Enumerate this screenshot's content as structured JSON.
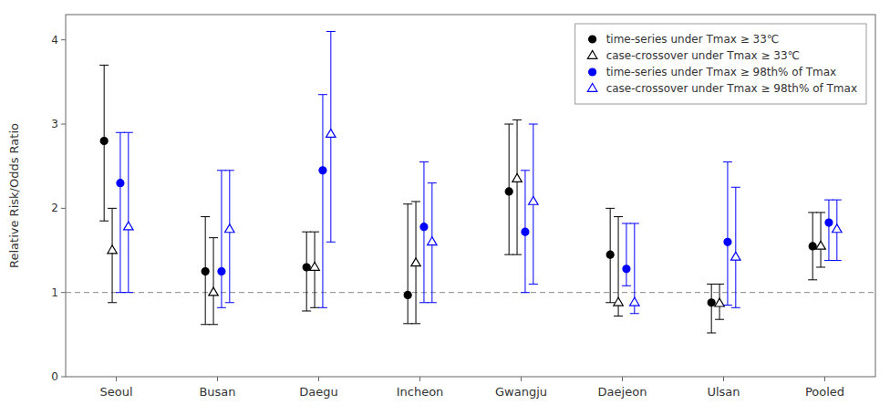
{
  "chart_data": {
    "type": "errorbar",
    "categories": [
      "Seoul",
      "Busan",
      "Daegu",
      "Incheon",
      "Gwangju",
      "Daejeon",
      "Ulsan",
      "Pooled"
    ],
    "y_label": "Relative Risk/Odds Ratio",
    "ylim": [
      0,
      4.3
    ],
    "yticks": [
      0,
      1,
      2,
      3,
      4
    ],
    "reference_line": 1.0,
    "grid": false,
    "legend": "upper right",
    "series": [
      {
        "name": "time-series under Tmax ≥ 33℃",
        "color": "#000000",
        "marker": "filled-circle",
        "values": [
          2.8,
          1.25,
          1.3,
          0.97,
          2.2,
          1.45,
          0.88,
          1.55
        ],
        "ci_low": [
          1.85,
          0.62,
          0.78,
          0.63,
          1.45,
          0.88,
          0.52,
          1.15
        ],
        "ci_high": [
          3.7,
          1.9,
          1.72,
          2.05,
          3.0,
          2.0,
          1.1,
          1.95
        ]
      },
      {
        "name": "case-crossover under Tmax ≥ 33℃",
        "color": "#000000",
        "marker": "open-triangle",
        "values": [
          1.5,
          1.0,
          1.3,
          1.35,
          2.35,
          0.88,
          0.87,
          1.55
        ],
        "ci_low": [
          0.88,
          0.62,
          0.82,
          0.63,
          1.45,
          0.72,
          0.68,
          1.3
        ],
        "ci_high": [
          2.0,
          1.65,
          1.72,
          2.08,
          3.05,
          1.9,
          1.1,
          1.95
        ]
      },
      {
        "name": "time-series under Tmax ≥ 98th% of Tmax",
        "color": "#0000ff",
        "marker": "filled-circle",
        "values": [
          2.3,
          1.25,
          2.45,
          1.78,
          1.72,
          1.28,
          1.6,
          1.83
        ],
        "ci_low": [
          1.0,
          0.82,
          0.82,
          0.88,
          1.0,
          1.08,
          0.85,
          1.38
        ],
        "ci_high": [
          2.9,
          2.45,
          3.35,
          2.55,
          2.45,
          1.82,
          2.55,
          2.1
        ]
      },
      {
        "name": "case-crossover under Tmax ≥ 98th% of Tmax",
        "color": "#0000ff",
        "marker": "open-triangle",
        "values": [
          1.78,
          1.75,
          2.88,
          1.6,
          2.08,
          0.88,
          1.42,
          1.75
        ],
        "ci_low": [
          1.0,
          0.88,
          1.6,
          0.88,
          1.1,
          0.75,
          0.82,
          1.38
        ],
        "ci_high": [
          2.9,
          2.45,
          4.1,
          2.3,
          3.0,
          1.82,
          2.25,
          2.1
        ]
      }
    ]
  }
}
